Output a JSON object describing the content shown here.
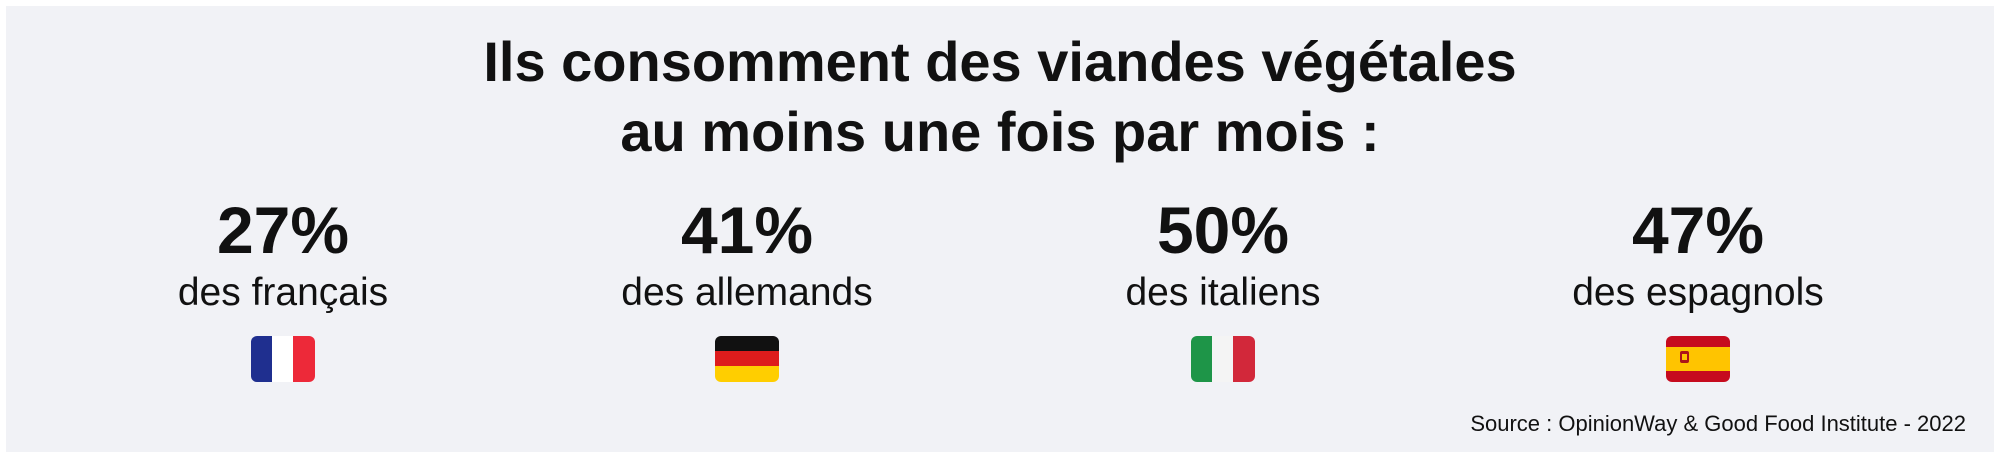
{
  "header": {
    "title_lines": [
      "Ils consomment des viandes végétales",
      "au moins une fois par mois :"
    ]
  },
  "stats": [
    {
      "value": "27%",
      "label": "des français"
    },
    {
      "value": "41%",
      "label": "des allemands"
    },
    {
      "value": "50%",
      "label": "des italiens"
    },
    {
      "value": "47%",
      "label": "des espagnols"
    }
  ],
  "footer": {
    "source": "Source : OpinionWay & Good Food Institute - 2022"
  }
}
